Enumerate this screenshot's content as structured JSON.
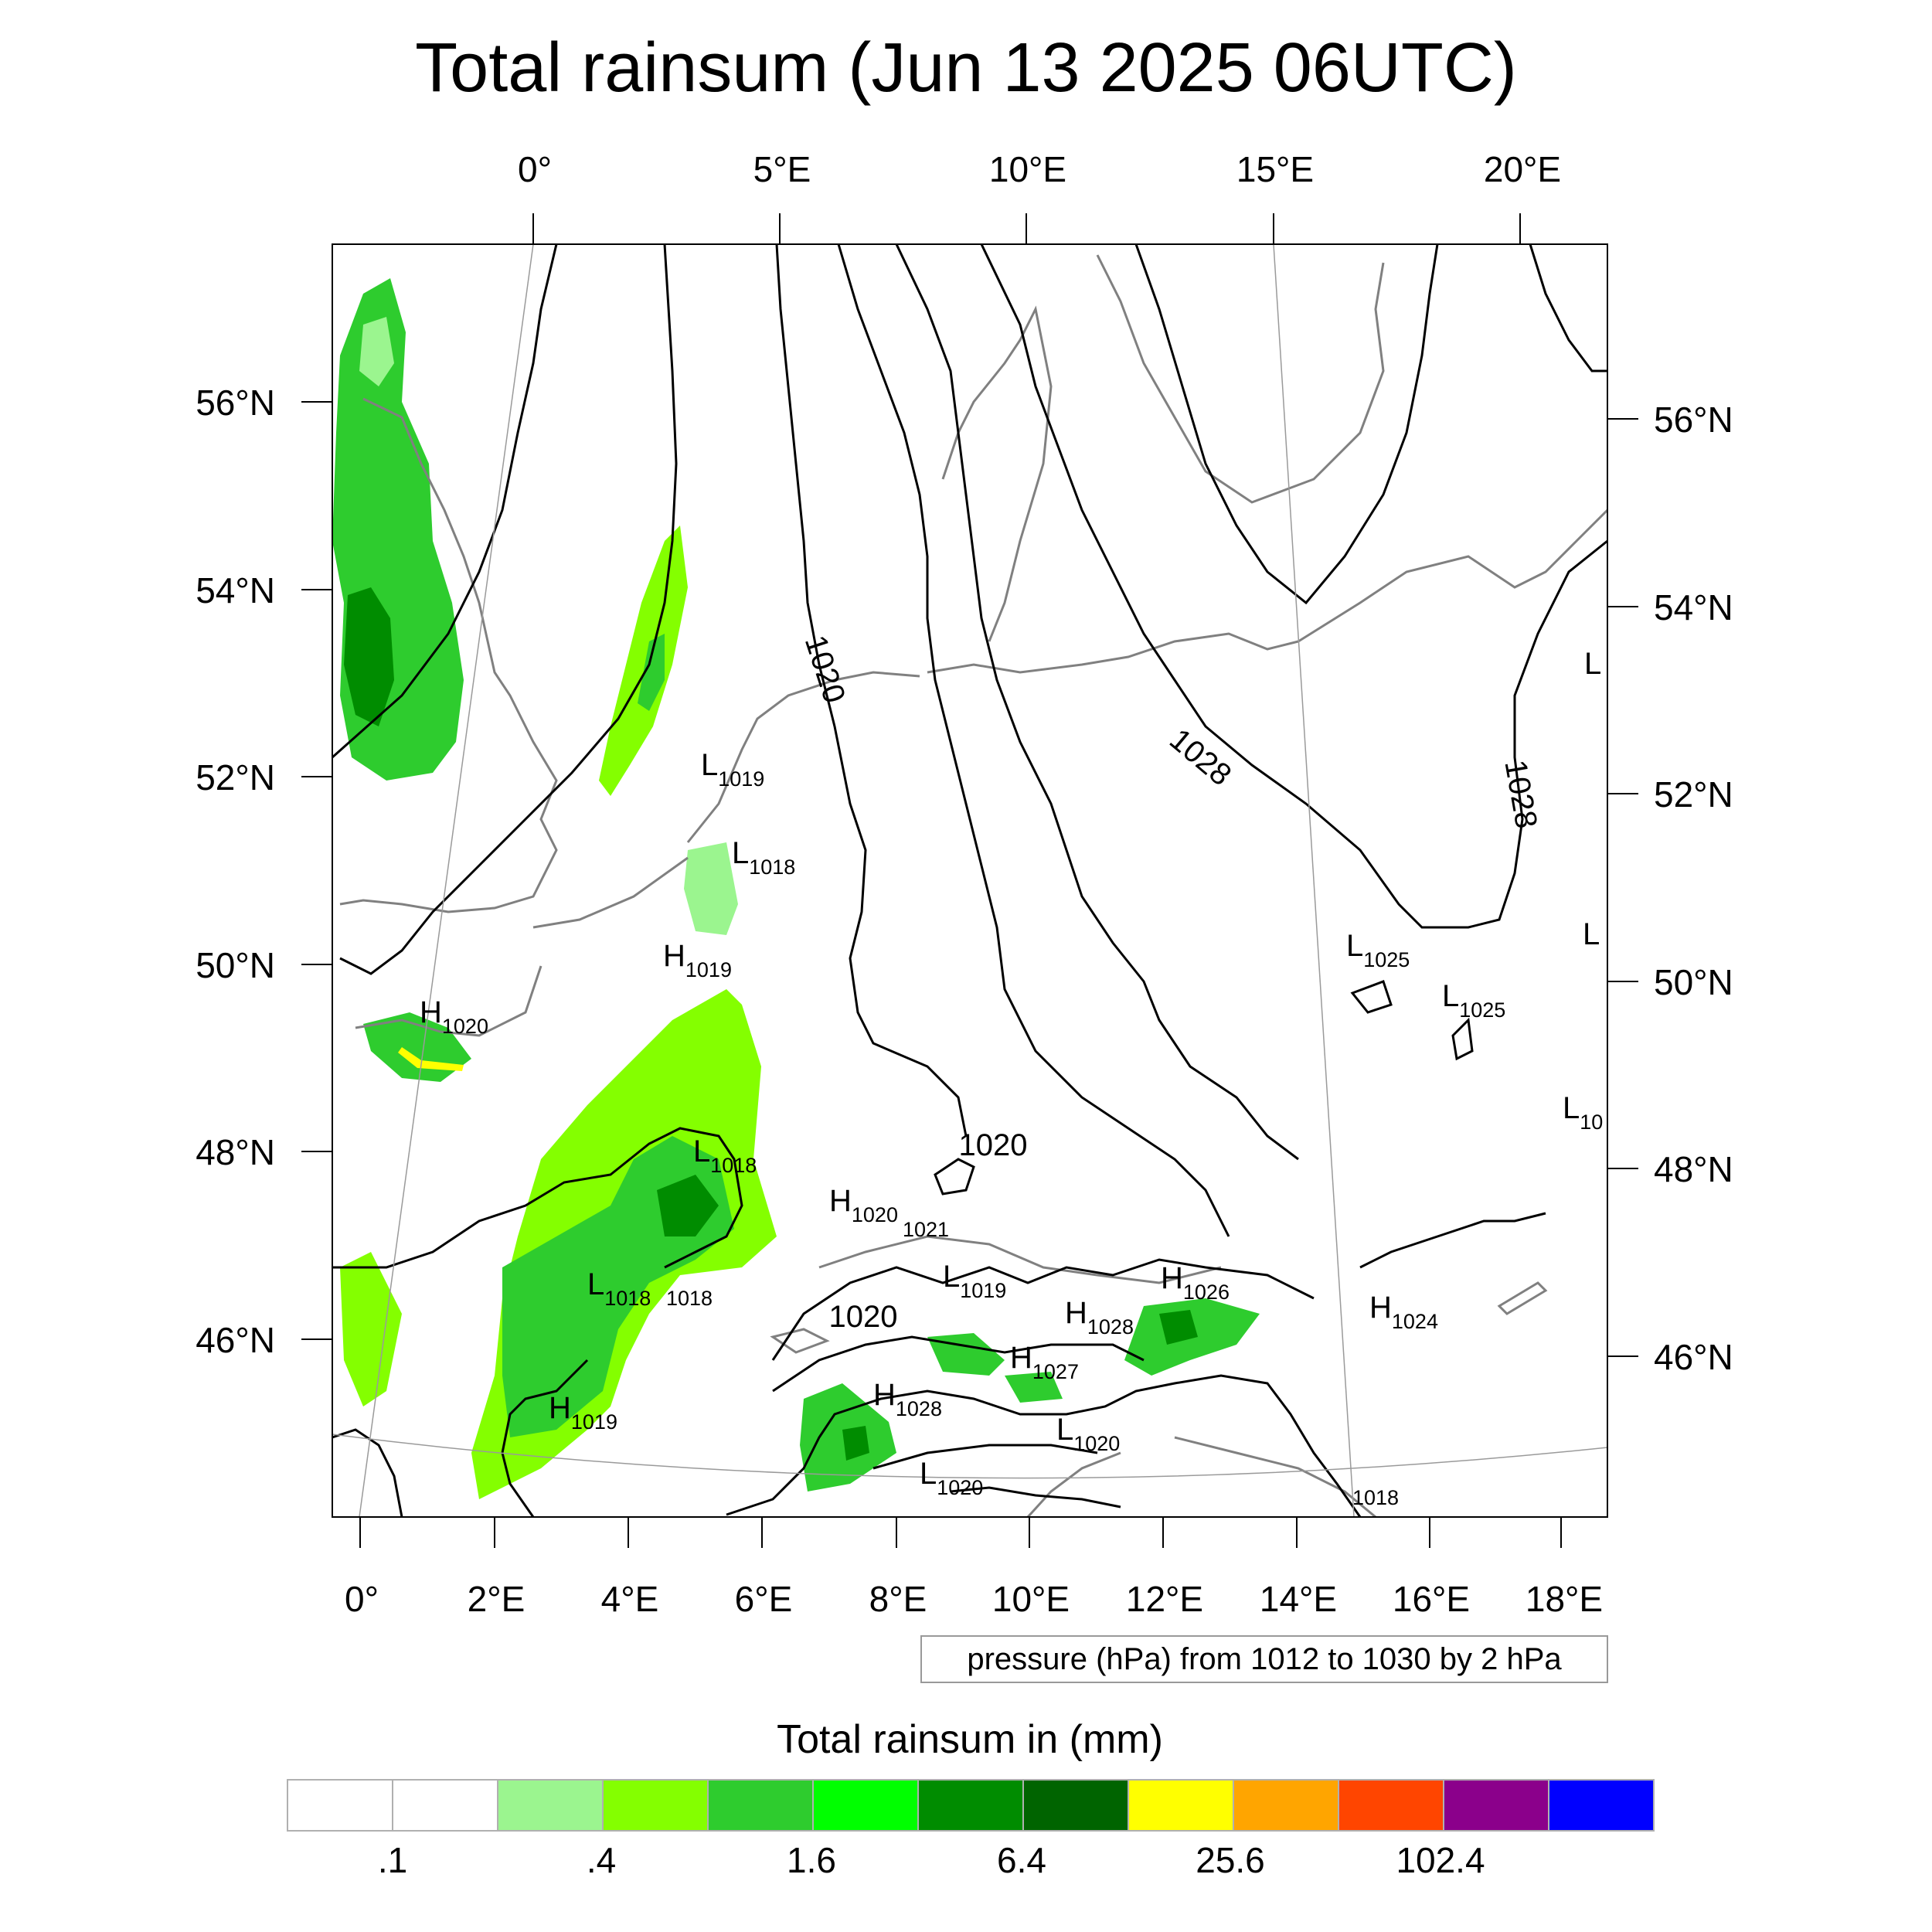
{
  "title": "Total rainsum (Jun 13 2025 06UTC)",
  "top_lon_labels": [
    "0°",
    "5°E",
    "10°E",
    "15°E",
    "20°E"
  ],
  "bottom_lon_labels": [
    "0°",
    "2°E",
    "4°E",
    "6°E",
    "8°E",
    "10°E",
    "12°E",
    "14°E",
    "16°E",
    "18°E"
  ],
  "left_lat_labels": [
    "56°N",
    "54°N",
    "52°N",
    "50°N",
    "48°N",
    "46°N"
  ],
  "right_lat_labels": [
    "56°N",
    "54°N",
    "52°N",
    "50°N",
    "48°N",
    "46°N"
  ],
  "isobar_labels": [
    "1020",
    "1028",
    "1028",
    "1020",
    "1020"
  ],
  "pressure_centers": [
    {
      "letter": "L",
      "value": "1019"
    },
    {
      "letter": "L",
      "value": "1018"
    },
    {
      "letter": "H",
      "value": "1019"
    },
    {
      "letter": "H",
      "value": "1020"
    },
    {
      "letter": "L",
      "value": "1018"
    },
    {
      "letter": "L",
      "value": "1018"
    },
    {
      "letter": "",
      "value": "1018"
    },
    {
      "letter": "H",
      "value": "1019"
    },
    {
      "letter": "H",
      "value": "1020"
    },
    {
      "letter": "",
      "value": "1021"
    },
    {
      "letter": "L",
      "value": "1019"
    },
    {
      "letter": "H",
      "value": "1026"
    },
    {
      "letter": "H",
      "value": "1028"
    },
    {
      "letter": "H",
      "value": "1027"
    },
    {
      "letter": "H",
      "value": "1028"
    },
    {
      "letter": "L",
      "value": "1020"
    },
    {
      "letter": "L",
      "value": "1020"
    },
    {
      "letter": "L",
      "value": "1025"
    },
    {
      "letter": "L",
      "value": "1025"
    },
    {
      "letter": "H",
      "value": "1024"
    },
    {
      "letter": "",
      "value": "1018"
    },
    {
      "letter": "L",
      "value": ""
    },
    {
      "letter": "L",
      "value": ""
    },
    {
      "letter": "L",
      "value": "10"
    }
  ],
  "pressure_note": "pressure (hPa) from 1012 to 1030 by 2 hPa",
  "legend": {
    "title": "Total rainsum in (mm)",
    "labels": [
      ".1",
      ".4",
      "1.6",
      "6.4",
      "25.6",
      "102.4"
    ],
    "colors": [
      "#ffffff",
      "#ffffff",
      "#9bf58f",
      "#84ff00",
      "#2ecc2e",
      "#00ff00",
      "#008c00",
      "#006400",
      "#ffff00",
      "#ffa500",
      "#ff4500",
      "#8b008b",
      "#0000ff"
    ]
  }
}
